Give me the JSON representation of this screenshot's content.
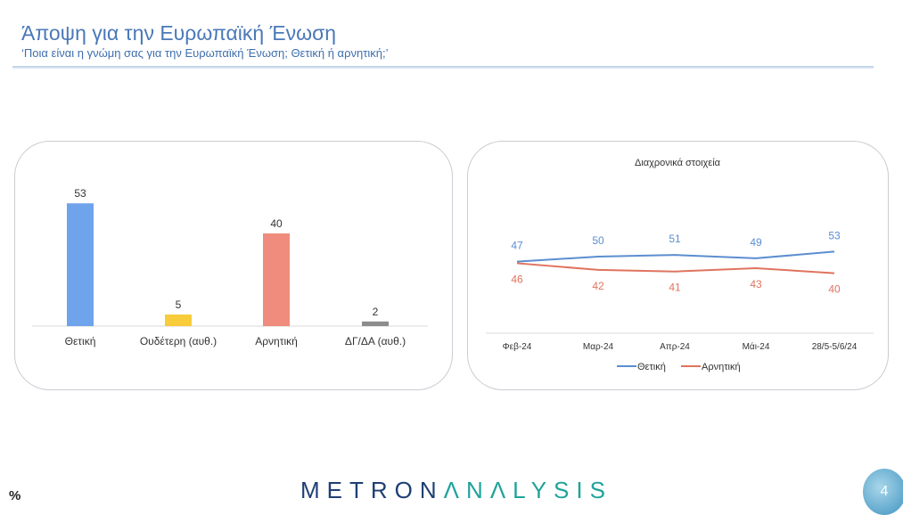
{
  "header": {
    "title": "Άποψη για την Ευρωπαϊκή Ένωση",
    "subtitle": "‘Ποια είναι η γνώμη σας για την Ευρωπαϊκή Ένωση; Θετική ή αρνητική;’"
  },
  "footer": {
    "unit": "%",
    "logo": "METRONANALYSIS",
    "page": "4"
  },
  "chart_data": [
    {
      "type": "bar",
      "categories": [
        "Θετική",
        "Ουδέτερη (αυθ.)",
        "Αρνητική",
        "ΔΓ/ΔΑ (αυθ.)"
      ],
      "values": [
        53,
        5,
        40,
        2
      ],
      "colors": [
        "#6fa3ec",
        "#f8cc3a",
        "#ef8c7d",
        "#8c8c8c"
      ],
      "grid": false
    },
    {
      "type": "line",
      "title": "Διαχρονικά στοιχεία",
      "categories": [
        "Φεβ-24",
        "Μαρ-24",
        "Απρ-24",
        "Μάι-24",
        "28/5-5/6/24"
      ],
      "series": [
        {
          "name": "Θετική",
          "values": [
            47,
            50,
            51,
            49,
            53
          ],
          "color": "#5b8ed0"
        },
        {
          "name": "Αρνητική",
          "values": [
            46,
            42,
            41,
            43,
            40
          ],
          "color": "#e0735f"
        }
      ],
      "legend": "bottom",
      "grid": false
    }
  ]
}
